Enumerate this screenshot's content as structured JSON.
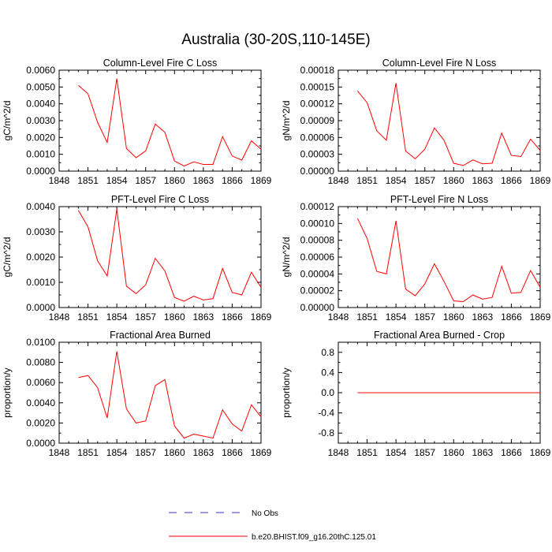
{
  "figure": {
    "title": "Australia (30-20S,110-145E)",
    "legend": [
      {
        "label": "No Obs",
        "color": "#3333cc",
        "dashed": true
      },
      {
        "label": "b.e20.BHIST.f09_g16.20thC.125.01",
        "color": "#ff0000",
        "dashed": false
      }
    ]
  },
  "chart_data": [
    {
      "type": "line",
      "title": "Column-Level Fire C Loss",
      "xlabel": "",
      "ylabel": "gC/m^2/d",
      "xlim": [
        1848,
        1869
      ],
      "ylim": [
        0,
        0.006
      ],
      "xticks": [
        "1848",
        "1851",
        "1854",
        "1857",
        "1860",
        "1863",
        "1866",
        "1869"
      ],
      "yticks": [
        "0.0000",
        "0.0010",
        "0.0020",
        "0.0030",
        "0.0040",
        "0.0050",
        "0.0060"
      ],
      "grid": false,
      "x": [
        1850,
        1851,
        1852,
        1853,
        1854,
        1855,
        1856,
        1857,
        1858,
        1859,
        1860,
        1861,
        1862,
        1863,
        1864,
        1865,
        1866,
        1867,
        1868,
        1869
      ],
      "series": [
        {
          "name": "b.e20.BHIST.f09_g16.20thC.125.01",
          "color": "#ff0000",
          "values": [
            0.0051,
            0.0046,
            0.0029,
            0.0017,
            0.0055,
            0.00135,
            0.0008,
            0.0012,
            0.0028,
            0.0023,
            0.0006,
            0.0003,
            0.00055,
            0.0004,
            0.0004,
            0.00205,
            0.0009,
            0.00065,
            0.0018,
            0.0013
          ]
        }
      ]
    },
    {
      "type": "line",
      "title": "Column-Level Fire N Loss",
      "xlabel": "",
      "ylabel": "gN/m^2/d",
      "xlim": [
        1848,
        1869
      ],
      "ylim": [
        0,
        0.00018
      ],
      "xticks": [
        "1848",
        "1851",
        "1854",
        "1857",
        "1860",
        "1863",
        "1866",
        "1869"
      ],
      "yticks": [
        "0.00000",
        "0.00003",
        "0.00006",
        "0.00009",
        "0.00012",
        "0.00015",
        "0.00018"
      ],
      "grid": false,
      "x": [
        1850,
        1851,
        1852,
        1853,
        1854,
        1855,
        1856,
        1857,
        1858,
        1859,
        1860,
        1861,
        1862,
        1863,
        1864,
        1865,
        1866,
        1867,
        1868,
        1869
      ],
      "series": [
        {
          "name": "b.e20.BHIST.f09_g16.20thC.125.01",
          "color": "#ff0000",
          "values": [
            0.000143,
            0.000122,
            7.2e-05,
            5.5e-05,
            0.000157,
            3.6e-05,
            2.2e-05,
            3.9e-05,
            7.7e-05,
            5.5e-05,
            1.4e-05,
            1e-05,
            2e-05,
            1.3e-05,
            1.4e-05,
            6.8e-05,
            2.8e-05,
            2.6e-05,
            5.7e-05,
            3.7e-05
          ]
        }
      ]
    },
    {
      "type": "line",
      "title": "PFT-Level Fire C Loss",
      "xlabel": "",
      "ylabel": "gC/m^2/d",
      "xlim": [
        1848,
        1869
      ],
      "ylim": [
        0,
        0.004
      ],
      "xticks": [
        "1848",
        "1851",
        "1854",
        "1857",
        "1860",
        "1863",
        "1866",
        "1869"
      ],
      "yticks": [
        "0.0000",
        "0.0010",
        "0.0020",
        "0.0030",
        "0.0040"
      ],
      "grid": false,
      "x": [
        1850,
        1851,
        1852,
        1853,
        1854,
        1855,
        1856,
        1857,
        1858,
        1859,
        1860,
        1861,
        1862,
        1863,
        1864,
        1865,
        1866,
        1867,
        1868,
        1869
      ],
      "series": [
        {
          "name": "b.e20.BHIST.f09_g16.20thC.125.01",
          "color": "#ff0000",
          "values": [
            0.00385,
            0.0032,
            0.00185,
            0.00125,
            0.0039,
            0.00085,
            0.00055,
            0.0009,
            0.00195,
            0.00145,
            0.0004,
            0.00025,
            0.00045,
            0.0003,
            0.00035,
            0.00155,
            0.0006,
            0.0005,
            0.0014,
            0.0008
          ]
        }
      ]
    },
    {
      "type": "line",
      "title": "PFT-Level Fire N Loss",
      "xlabel": "",
      "ylabel": "gN/m^2/d",
      "xlim": [
        1848,
        1869
      ],
      "ylim": [
        0,
        0.00012
      ],
      "xticks": [
        "1848",
        "1851",
        "1854",
        "1857",
        "1860",
        "1863",
        "1866",
        "1869"
      ],
      "yticks": [
        "0.00000",
        "0.00002",
        "0.00004",
        "0.00006",
        "0.00008",
        "0.00010",
        "0.00012"
      ],
      "grid": false,
      "x": [
        1850,
        1851,
        1852,
        1853,
        1854,
        1855,
        1856,
        1857,
        1858,
        1859,
        1860,
        1861,
        1862,
        1863,
        1864,
        1865,
        1866,
        1867,
        1868,
        1869
      ],
      "series": [
        {
          "name": "b.e20.BHIST.f09_g16.20thC.125.01",
          "color": "#ff0000",
          "values": [
            0.000106,
            8.2e-05,
            4.3e-05,
            4e-05,
            0.000103,
            2.2e-05,
            1.4e-05,
            2.8e-05,
            5.2e-05,
            3.1e-05,
            8e-06,
            7e-06,
            1.5e-05,
            1e-05,
            1.2e-05,
            4.9e-05,
            1.7e-05,
            1.8e-05,
            4.4e-05,
            2.4e-05
          ]
        }
      ]
    },
    {
      "type": "line",
      "title": "Fractional Area Burned",
      "xlabel": "",
      "ylabel": "proportion/y",
      "xlim": [
        1848,
        1869
      ],
      "ylim": [
        0,
        0.01
      ],
      "xticks": [
        "1848",
        "1851",
        "1854",
        "1857",
        "1860",
        "1863",
        "1866",
        "1869"
      ],
      "yticks": [
        "0.0000",
        "0.0020",
        "0.0040",
        "0.0060",
        "0.0080",
        "0.0100"
      ],
      "grid": false,
      "x": [
        1850,
        1851,
        1852,
        1853,
        1854,
        1855,
        1856,
        1857,
        1858,
        1859,
        1860,
        1861,
        1862,
        1863,
        1864,
        1865,
        1866,
        1867,
        1868,
        1869
      ],
      "series": [
        {
          "name": "b.e20.BHIST.f09_g16.20thC.125.01",
          "color": "#ff0000",
          "values": [
            0.0065,
            0.0067,
            0.0055,
            0.0025,
            0.0091,
            0.0034,
            0.002,
            0.0022,
            0.0057,
            0.0063,
            0.0017,
            0.0005,
            0.0009,
            0.0007,
            0.0005,
            0.0033,
            0.0019,
            0.0012,
            0.0038,
            0.0026
          ]
        }
      ]
    },
    {
      "type": "line",
      "title": "Fractional Area Burned - Crop",
      "xlabel": "",
      "ylabel": "proportion/y",
      "xlim": [
        1848,
        1869
      ],
      "ylim": [
        -1,
        1
      ],
      "xticks": [
        "1848",
        "1851",
        "1854",
        "1857",
        "1860",
        "1863",
        "1866",
        "1869"
      ],
      "yticks": [
        "-0.8",
        "-0.4",
        "0.0",
        "0.4",
        "0.8"
      ],
      "grid": false,
      "x": [
        1850,
        1851,
        1852,
        1853,
        1854,
        1855,
        1856,
        1857,
        1858,
        1859,
        1860,
        1861,
        1862,
        1863,
        1864,
        1865,
        1866,
        1867,
        1868,
        1869
      ],
      "series": [
        {
          "name": "b.e20.BHIST.f09_g16.20thC.125.01",
          "color": "#ff0000",
          "values": [
            0,
            0,
            0,
            0,
            0,
            0,
            0,
            0,
            0,
            0,
            0,
            0,
            0,
            0,
            0,
            0,
            0,
            0,
            0,
            0
          ]
        }
      ]
    }
  ]
}
